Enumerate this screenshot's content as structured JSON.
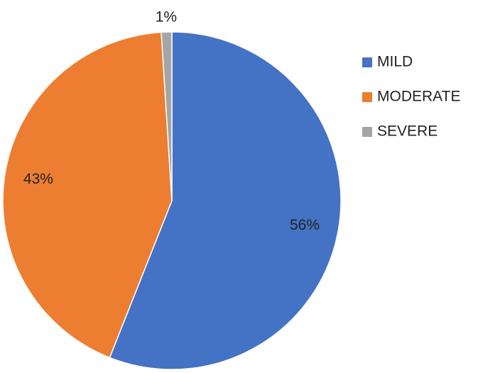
{
  "chart_data": {
    "type": "pie",
    "categories": [
      "MILD",
      "MODERATE",
      "SEVERE"
    ],
    "values": [
      56,
      43,
      1
    ],
    "value_labels": [
      "56%",
      "43%",
      "1%"
    ],
    "colors": [
      "#4472c4",
      "#ed7d31",
      "#a5a5a5"
    ],
    "legend": "right"
  }
}
